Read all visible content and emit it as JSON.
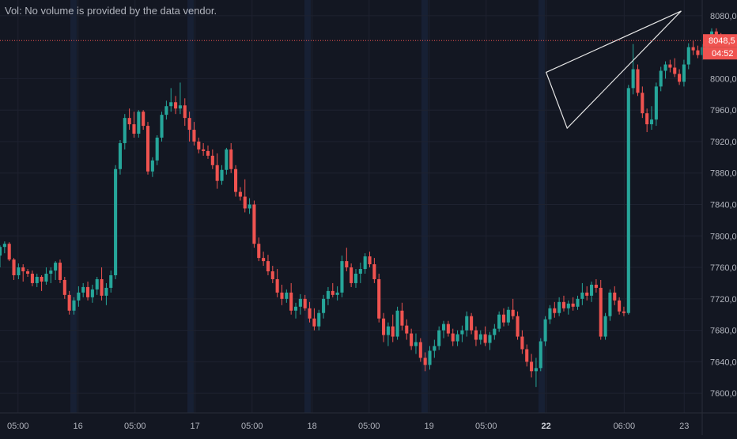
{
  "header": {
    "vol_note": "Vol: No volume is provided by the data vendor."
  },
  "colors": {
    "background": "#131722",
    "grid": "#1e2230",
    "session_band": "#172034",
    "up": "#26a69a",
    "down": "#ef5350",
    "axis_text": "#b2b5be",
    "drawing": "#e6e6e6",
    "price_line": "#ef5350"
  },
  "chart_data": {
    "type": "candlestick",
    "title": "",
    "xlabel": "",
    "ylabel": "",
    "ylim": [
      7575,
      8100
    ],
    "y_ticks": [
      {
        "value": 8080,
        "label": "8080,0"
      },
      {
        "value": 8000,
        "label": "8000,0"
      },
      {
        "value": 7960,
        "label": "7960,0"
      },
      {
        "value": 7920,
        "label": "7920,0"
      },
      {
        "value": 7880,
        "label": "7880,0"
      },
      {
        "value": 7840,
        "label": "7840,0"
      },
      {
        "value": 7800,
        "label": "7800,0"
      },
      {
        "value": 7760,
        "label": "7760,0"
      },
      {
        "value": 7720,
        "label": "7720,0"
      },
      {
        "value": 7680,
        "label": "7680,0"
      },
      {
        "value": 7640,
        "label": "7640,0"
      },
      {
        "value": 7600,
        "label": "7600,0"
      }
    ],
    "x_domain_bars": [
      0,
      234
    ],
    "x_ticks": [
      {
        "bar": 6,
        "label": "05:00",
        "bold": false
      },
      {
        "bar": 26,
        "label": "16",
        "bold": false
      },
      {
        "bar": 45,
        "label": "05:00",
        "bold": false
      },
      {
        "bar": 65,
        "label": "17",
        "bold": false
      },
      {
        "bar": 84,
        "label": "05:00",
        "bold": false
      },
      {
        "bar": 104,
        "label": "18",
        "bold": false
      },
      {
        "bar": 123,
        "label": "05:00",
        "bold": false
      },
      {
        "bar": 143,
        "label": "19",
        "bold": false
      },
      {
        "bar": 162,
        "label": "05:00",
        "bold": false
      },
      {
        "bar": 182,
        "label": "22",
        "bold": true
      },
      {
        "bar": 208,
        "label": "06:00",
        "bold": false
      },
      {
        "bar": 228,
        "label": "23",
        "bold": false
      }
    ],
    "session_bands": [
      24.5,
      63.5,
      102.5,
      141.5,
      180.5
    ],
    "candles": [
      [
        7775,
        7788,
        7760,
        7786
      ],
      [
        7786,
        7793,
        7778,
        7790
      ],
      [
        7790,
        7792,
        7768,
        7770
      ],
      [
        7770,
        7772,
        7744,
        7750
      ],
      [
        7750,
        7765,
        7745,
        7760
      ],
      [
        7760,
        7764,
        7742,
        7755
      ],
      [
        7755,
        7758,
        7748,
        7752
      ],
      [
        7752,
        7756,
        7736,
        7740
      ],
      [
        7740,
        7752,
        7735,
        7748
      ],
      [
        7748,
        7750,
        7730,
        7742
      ],
      [
        7742,
        7760,
        7738,
        7752
      ],
      [
        7752,
        7760,
        7740,
        7756
      ],
      [
        7756,
        7768,
        7744,
        7766
      ],
      [
        7766,
        7770,
        7740,
        7744
      ],
      [
        7744,
        7748,
        7720,
        7725
      ],
      [
        7725,
        7730,
        7700,
        7705
      ],
      [
        7705,
        7722,
        7700,
        7718
      ],
      [
        7718,
        7736,
        7710,
        7728
      ],
      [
        7728,
        7740,
        7722,
        7735
      ],
      [
        7735,
        7742,
        7718,
        7722
      ],
      [
        7722,
        7738,
        7715,
        7732
      ],
      [
        7732,
        7748,
        7725,
        7745
      ],
      [
        7745,
        7760,
        7718,
        7724
      ],
      [
        7724,
        7740,
        7712,
        7734
      ],
      [
        7734,
        7756,
        7728,
        7750
      ],
      [
        7750,
        7890,
        7745,
        7885
      ],
      [
        7885,
        7922,
        7878,
        7918
      ],
      [
        7918,
        7955,
        7910,
        7950
      ],
      [
        7950,
        7962,
        7935,
        7942
      ],
      [
        7942,
        7958,
        7925,
        7930
      ],
      [
        7930,
        7960,
        7925,
        7958
      ],
      [
        7958,
        7960,
        7935,
        7940
      ],
      [
        7940,
        7945,
        7878,
        7882
      ],
      [
        7882,
        7900,
        7875,
        7896
      ],
      [
        7896,
        7928,
        7890,
        7925
      ],
      [
        7925,
        7958,
        7920,
        7954
      ],
      [
        7954,
        7972,
        7948,
        7965
      ],
      [
        7965,
        7988,
        7958,
        7970
      ],
      [
        7970,
        7978,
        7955,
        7962
      ],
      [
        7962,
        7995,
        7955,
        7966
      ],
      [
        7966,
        7975,
        7940,
        7950
      ],
      [
        7950,
        7958,
        7920,
        7935
      ],
      [
        7935,
        7945,
        7915,
        7920
      ],
      [
        7920,
        7925,
        7905,
        7910
      ],
      [
        7910,
        7918,
        7902,
        7908
      ],
      [
        7908,
        7915,
        7898,
        7902
      ],
      [
        7902,
        7910,
        7885,
        7890
      ],
      [
        7890,
        7905,
        7860,
        7870
      ],
      [
        7870,
        7890,
        7865,
        7884
      ],
      [
        7884,
        7912,
        7878,
        7910
      ],
      [
        7910,
        7918,
        7880,
        7885
      ],
      [
        7885,
        7890,
        7850,
        7856
      ],
      [
        7856,
        7862,
        7845,
        7850
      ],
      [
        7850,
        7872,
        7830,
        7835
      ],
      [
        7835,
        7848,
        7828,
        7840
      ],
      [
        7840,
        7845,
        7785,
        7790
      ],
      [
        7790,
        7798,
        7768,
        7772
      ],
      [
        7772,
        7780,
        7762,
        7768
      ],
      [
        7768,
        7776,
        7750,
        7755
      ],
      [
        7755,
        7762,
        7740,
        7745
      ],
      [
        7745,
        7758,
        7722,
        7728
      ],
      [
        7728,
        7738,
        7712,
        7720
      ],
      [
        7720,
        7732,
        7715,
        7728
      ],
      [
        7728,
        7740,
        7700,
        7705
      ],
      [
        7705,
        7715,
        7695,
        7710
      ],
      [
        7710,
        7726,
        7700,
        7720
      ],
      [
        7720,
        7725,
        7705,
        7708
      ],
      [
        7708,
        7716,
        7690,
        7695
      ],
      [
        7695,
        7708,
        7680,
        7685
      ],
      [
        7685,
        7706,
        7680,
        7702
      ],
      [
        7702,
        7725,
        7695,
        7720
      ],
      [
        7720,
        7735,
        7712,
        7730
      ],
      [
        7730,
        7740,
        7722,
        7725
      ],
      [
        7725,
        7736,
        7718,
        7728
      ],
      [
        7728,
        7775,
        7722,
        7768
      ],
      [
        7768,
        7785,
        7755,
        7760
      ],
      [
        7760,
        7765,
        7735,
        7740
      ],
      [
        7740,
        7758,
        7734,
        7752
      ],
      [
        7752,
        7766,
        7740,
        7758
      ],
      [
        7758,
        7778,
        7752,
        7774
      ],
      [
        7774,
        7780,
        7760,
        7764
      ],
      [
        7764,
        7772,
        7740,
        7745
      ],
      [
        7745,
        7752,
        7690,
        7695
      ],
      [
        7695,
        7702,
        7665,
        7674
      ],
      [
        7674,
        7690,
        7660,
        7685
      ],
      [
        7685,
        7700,
        7665,
        7672
      ],
      [
        7672,
        7710,
        7668,
        7705
      ],
      [
        7705,
        7715,
        7680,
        7686
      ],
      [
        7686,
        7694,
        7668,
        7676
      ],
      [
        7676,
        7682,
        7655,
        7660
      ],
      [
        7660,
        7676,
        7650,
        7665
      ],
      [
        7665,
        7670,
        7640,
        7645
      ],
      [
        7645,
        7652,
        7628,
        7636
      ],
      [
        7636,
        7660,
        7630,
        7654
      ],
      [
        7654,
        7668,
        7645,
        7660
      ],
      [
        7660,
        7685,
        7655,
        7680
      ],
      [
        7680,
        7692,
        7670,
        7688
      ],
      [
        7688,
        7692,
        7672,
        7676
      ],
      [
        7676,
        7682,
        7660,
        7666
      ],
      [
        7666,
        7680,
        7660,
        7675
      ],
      [
        7675,
        7686,
        7665,
        7680
      ],
      [
        7680,
        7704,
        7672,
        7698
      ],
      [
        7698,
        7702,
        7675,
        7680
      ],
      [
        7680,
        7685,
        7660,
        7668
      ],
      [
        7668,
        7680,
        7662,
        7675
      ],
      [
        7675,
        7685,
        7660,
        7664
      ],
      [
        7664,
        7678,
        7655,
        7674
      ],
      [
        7674,
        7688,
        7668,
        7682
      ],
      [
        7682,
        7704,
        7678,
        7700
      ],
      [
        7700,
        7708,
        7685,
        7690
      ],
      [
        7690,
        7710,
        7686,
        7706
      ],
      [
        7706,
        7720,
        7694,
        7698
      ],
      [
        7698,
        7704,
        7668,
        7672
      ],
      [
        7672,
        7680,
        7650,
        7656
      ],
      [
        7656,
        7662,
        7634,
        7640
      ],
      [
        7640,
        7650,
        7620,
        7628
      ],
      [
        7628,
        7645,
        7608,
        7632
      ],
      [
        7632,
        7670,
        7628,
        7666
      ],
      [
        7666,
        7698,
        7660,
        7694
      ],
      [
        7694,
        7712,
        7688,
        7708
      ],
      [
        7708,
        7716,
        7696,
        7702
      ],
      [
        7702,
        7722,
        7698,
        7716
      ],
      [
        7716,
        7724,
        7704,
        7708
      ],
      [
        7708,
        7718,
        7700,
        7714
      ],
      [
        7714,
        7722,
        7705,
        7710
      ],
      [
        7710,
        7724,
        7706,
        7720
      ],
      [
        7720,
        7740,
        7712,
        7728
      ],
      [
        7728,
        7736,
        7718,
        7724
      ],
      [
        7724,
        7742,
        7716,
        7738
      ],
      [
        7738,
        7745,
        7728,
        7734
      ],
      [
        7734,
        7744,
        7668,
        7672
      ],
      [
        7672,
        7702,
        7668,
        7698
      ],
      [
        7698,
        7732,
        7692,
        7728
      ],
      [
        7728,
        7736,
        7712,
        7718
      ],
      [
        7718,
        7722,
        7700,
        7704
      ],
      [
        7704,
        7710,
        7698,
        7702
      ],
      [
        7702,
        7992,
        7700,
        7988
      ],
      [
        7988,
        8044,
        7980,
        8012
      ],
      [
        8012,
        8018,
        7978,
        7982
      ],
      [
        7982,
        7990,
        7950,
        7956
      ],
      [
        7956,
        7962,
        7932,
        7942
      ],
      [
        7942,
        7965,
        7935,
        7948
      ],
      [
        7948,
        7995,
        7940,
        7990
      ],
      [
        7990,
        8015,
        7984,
        8010
      ],
      [
        8010,
        8022,
        8000,
        8018
      ],
      [
        8018,
        8024,
        8008,
        8014
      ],
      [
        8014,
        8026,
        8002,
        8006
      ],
      [
        8006,
        8012,
        7992,
        7996
      ],
      [
        7996,
        8024,
        7990,
        8018
      ],
      [
        8018,
        8045,
        8012,
        8040
      ],
      [
        8040,
        8048,
        8030,
        8036
      ],
      [
        8036,
        8042,
        8026,
        8030
      ],
      [
        8030,
        8044,
        8024,
        8040
      ],
      [
        8040,
        8048,
        8032,
        8045
      ],
      [
        8045,
        8064,
        8040,
        8060
      ],
      [
        8060,
        8064,
        8046,
        8052
      ],
      [
        8052,
        8058,
        8045,
        8048
      ]
    ],
    "candle_first_bar": 0,
    "candle_step_bars": 1.54,
    "drawing_triangle": [
      {
        "bar": 182,
        "price": 8008
      },
      {
        "bar": 227,
        "price": 8086
      },
      {
        "bar": 189,
        "price": 7937
      }
    ],
    "last_price": {
      "value": 8048.5,
      "label": "8048,5",
      "countdown": "04:52"
    }
  }
}
